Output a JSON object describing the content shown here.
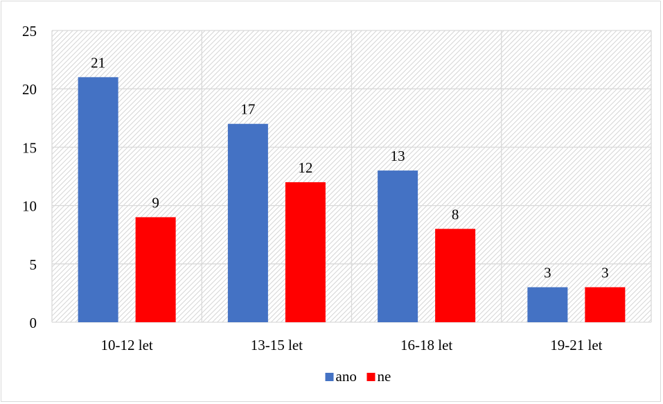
{
  "chart_data": {
    "type": "bar",
    "title": "",
    "xlabel": "",
    "ylabel": "",
    "categories": [
      "10-12 let",
      "13-15 let",
      "16-18 let",
      "19-21 let"
    ],
    "series": [
      {
        "name": "ano",
        "values": [
          21,
          17,
          13,
          3
        ],
        "color": "#4472c4"
      },
      {
        "name": "ne",
        "values": [
          9,
          12,
          8,
          3
        ],
        "color": "#ff0000"
      }
    ],
    "ylim": [
      0,
      25
    ],
    "yticks": [
      "0",
      "5",
      "10",
      "15",
      "20",
      "25"
    ],
    "data_labels": true,
    "grid": true,
    "plot_background": "hatched light gray",
    "legend_position": "bottom"
  }
}
